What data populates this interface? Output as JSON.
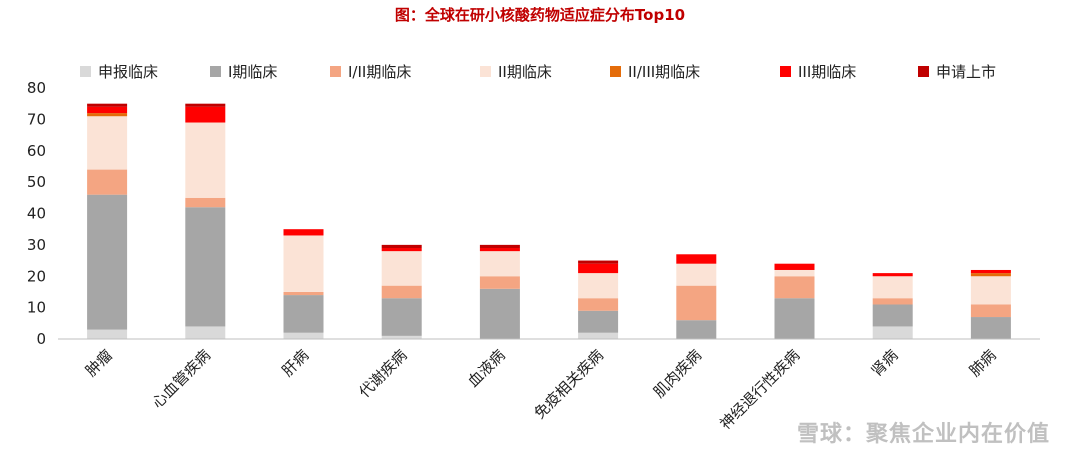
{
  "chart_data": {
    "type": "bar",
    "stacked": true,
    "title": "图：全球在研小核酸药物适应症分布Top10",
    "categories": [
      "肿瘤",
      "心血管疾病",
      "肝病",
      "代谢疾病",
      "血液病",
      "免疫相关疾病",
      "肌肉疾病",
      "神经退行性疾病",
      "肾病",
      "肺病"
    ],
    "series": [
      {
        "name": "申报临床",
        "color": "#d9d9d9",
        "values": [
          3,
          4,
          2,
          1,
          0,
          2,
          0,
          0,
          4,
          0
        ]
      },
      {
        "name": "I期临床",
        "color": "#a6a6a6",
        "values": [
          43,
          38,
          12,
          12,
          16,
          7,
          6,
          13,
          7,
          7
        ]
      },
      {
        "name": "I/II期临床",
        "color": "#f4a582",
        "values": [
          8,
          3,
          1,
          4,
          4,
          4,
          11,
          7,
          2,
          4
        ]
      },
      {
        "name": "II期临床",
        "color": "#fbe3d6",
        "values": [
          17,
          24,
          18,
          11,
          8,
          8,
          7,
          2,
          7,
          9
        ]
      },
      {
        "name": "II/III期临床",
        "color": "#e46c0a",
        "values": [
          1,
          0,
          0,
          0,
          0,
          0,
          0,
          0,
          0,
          1
        ]
      },
      {
        "name": "III期临床",
        "color": "#ff0000",
        "values": [
          2,
          5,
          2,
          1,
          1,
          3,
          3,
          2,
          1,
          1
        ]
      },
      {
        "name": "申请上市",
        "color": "#c00000",
        "values": [
          1,
          1,
          0,
          1,
          1,
          1,
          0,
          0,
          0,
          0
        ]
      }
    ],
    "yticks": [
      0,
      10,
      20,
      30,
      40,
      50,
      60,
      70,
      80
    ],
    "ylim": [
      0,
      80
    ],
    "grid": false,
    "legend": "top"
  },
  "watermark": "雪球：聚焦企业内在价值"
}
